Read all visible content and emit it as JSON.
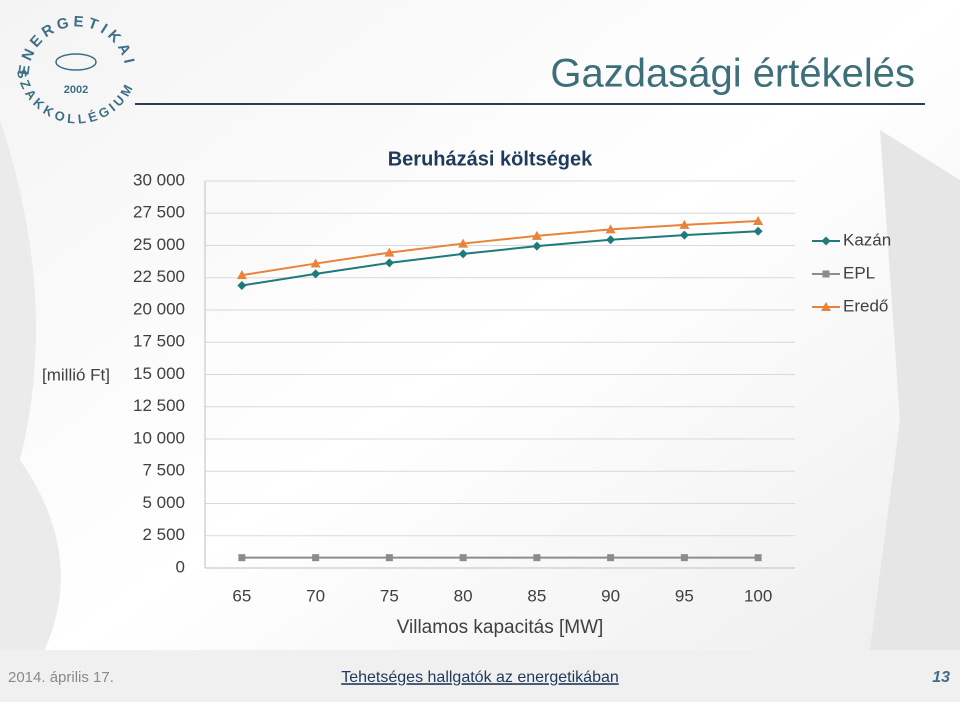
{
  "slide": {
    "title": "Gazdasági értékelés",
    "date": "2014. április 17.",
    "footer": "Tehetséges hallgatók az energetikában",
    "page_number": "13",
    "logo": {
      "top": "ENERGETIKAI",
      "bottom": "SZAKKOLLÉGIUM",
      "year": "2002"
    }
  },
  "chart_data": {
    "type": "line",
    "title": "Beruházási költségek",
    "y_label": "[millió Ft]",
    "x_label": "Villamos kapacitás [MW]",
    "categories": [
      "65",
      "70",
      "75",
      "80",
      "85",
      "90",
      "95",
      "100"
    ],
    "series": [
      {
        "name": "Kazán",
        "color": "#1f7a7c",
        "marker": "diamond",
        "values": [
          21900,
          22800,
          23650,
          24350,
          24950,
          25450,
          25800,
          26100
        ]
      },
      {
        "name": "EPL",
        "color": "#8c8c8c",
        "marker": "square",
        "values": [
          800,
          800,
          800,
          800,
          800,
          800,
          800,
          800
        ]
      },
      {
        "name": "Eredő",
        "color": "#e9833a",
        "marker": "triangle",
        "values": [
          22700,
          23600,
          24450,
          25150,
          25750,
          26250,
          26600,
          26900
        ]
      }
    ],
    "ylim": [
      0,
      30000
    ],
    "yticks": [
      0,
      {
        "value": 2500,
        "label": "2 500"
      },
      {
        "value": 5000,
        "label": "5 000"
      },
      {
        "value": 7500,
        "label": "7 500"
      },
      {
        "value": 10000,
        "label": "10 000"
      },
      {
        "value": 12500,
        "label": "12 500"
      },
      {
        "value": 15000,
        "label": "15 000"
      },
      {
        "value": 17500,
        "label": "17 500"
      },
      {
        "value": 20000,
        "label": "20 000"
      },
      {
        "value": 22500,
        "label": "22 500"
      },
      {
        "value": 25000,
        "label": "25 000"
      },
      {
        "value": 27500,
        "label": "27 500"
      },
      {
        "value": 30000,
        "label": "30 000"
      }
    ],
    "grid": true,
    "legend": "right"
  }
}
